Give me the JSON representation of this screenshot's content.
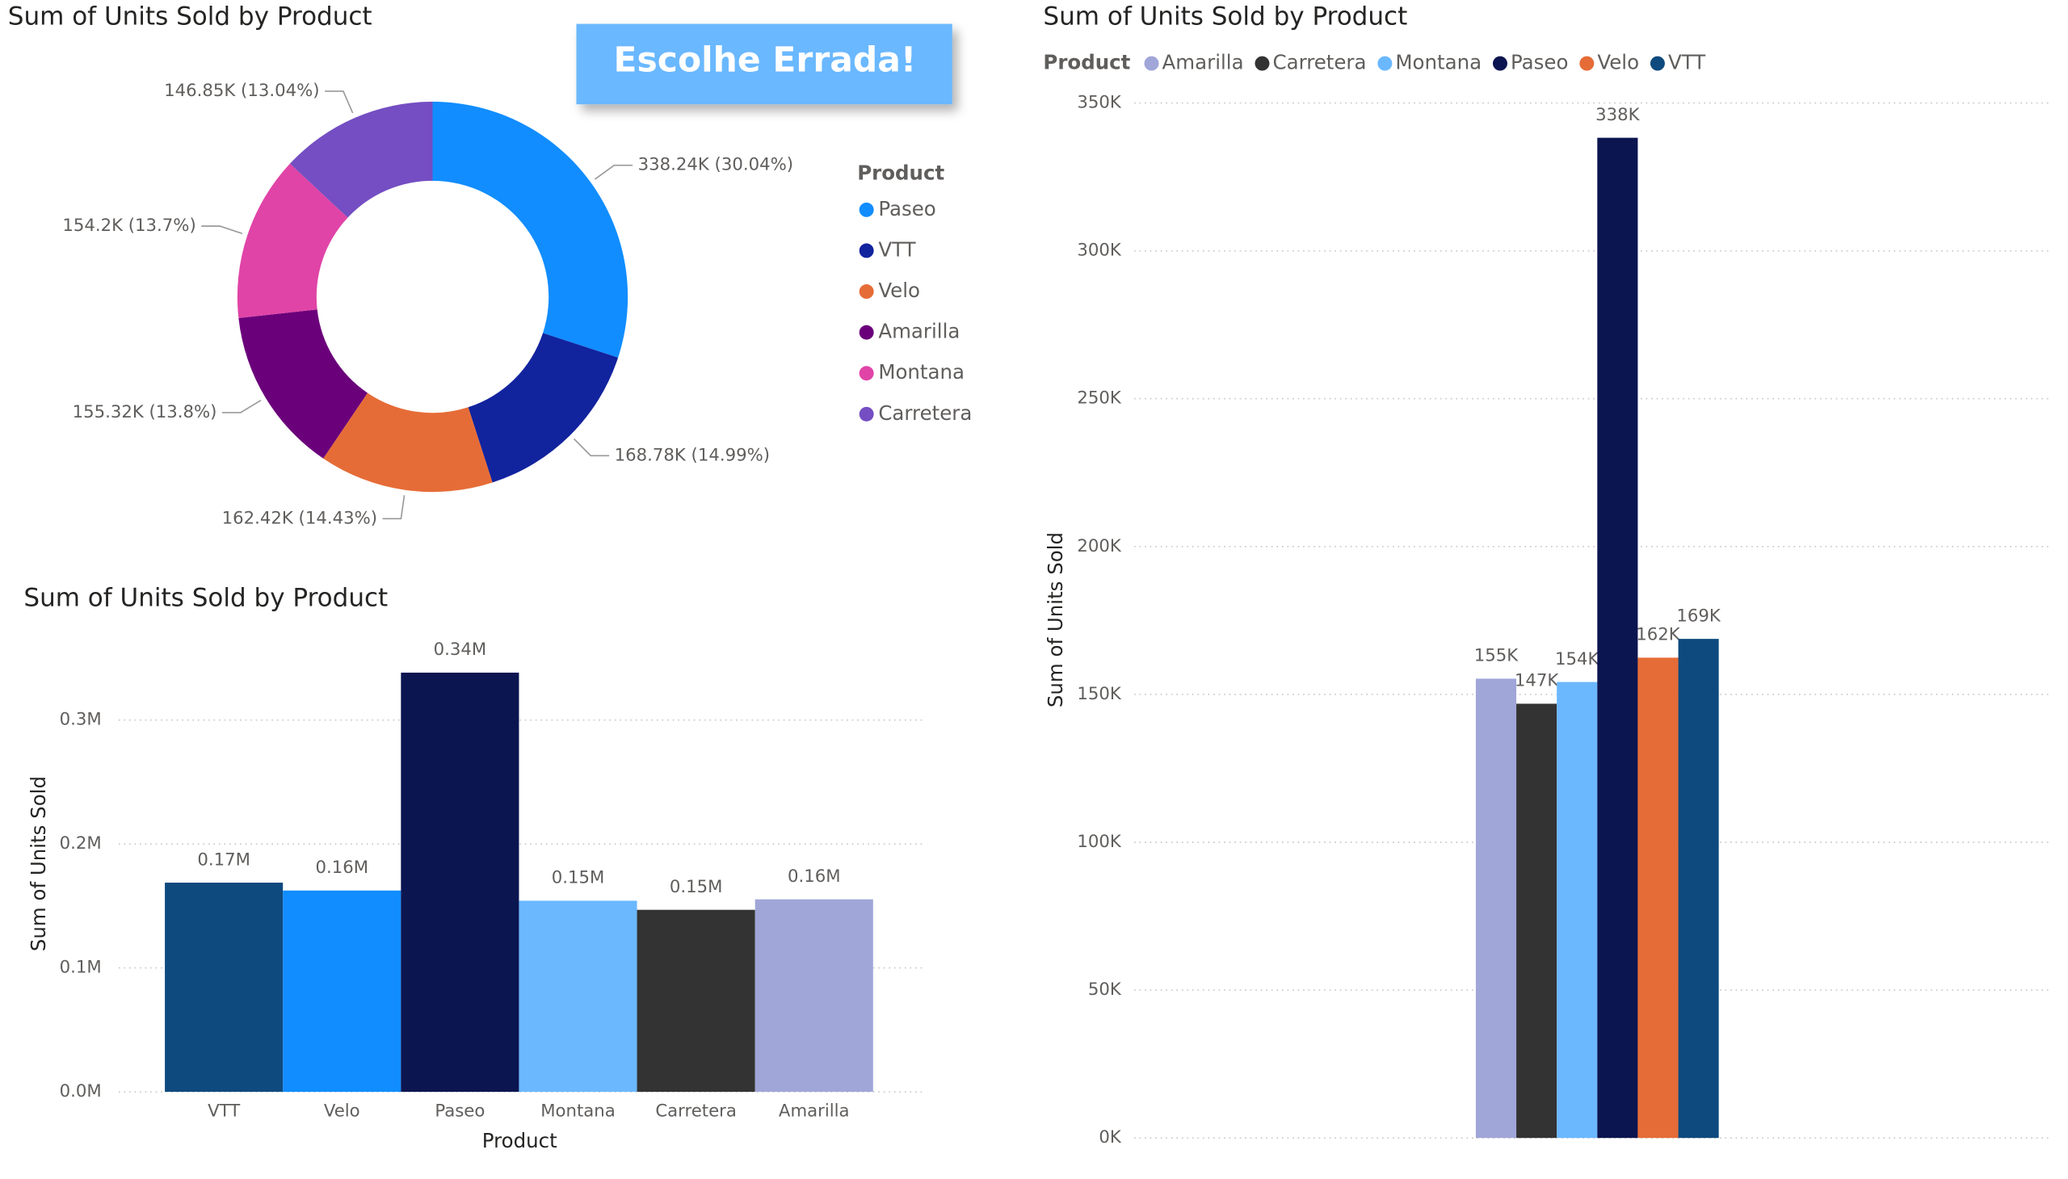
{
  "banner": {
    "text": "Escolhe Errada!"
  },
  "chart_data": [
    {
      "type": "donut",
      "title": "Sum of Units Sold by Product",
      "legend_title": "Product",
      "categories": [
        "Paseo",
        "VTT",
        "Velo",
        "Amarilla",
        "Montana",
        "Carretera"
      ],
      "values": [
        338.24,
        168.78,
        162.42,
        155.32,
        154.2,
        146.85
      ],
      "value_labels": [
        "338.24K (30.04%)",
        "168.78K (14.99%)",
        "162.42K (14.43%)",
        "155.32K (13.8%)",
        "154.2K (13.7%)",
        "146.85K (13.04%)"
      ],
      "colors": [
        "#118dff",
        "#12239e",
        "#e66c37",
        "#6b007b",
        "#e044a7",
        "#744ec2"
      ]
    },
    {
      "type": "bar",
      "title": "Sum of Units Sold by Product",
      "x_label": "Product",
      "y_label": "Sum of Units Sold",
      "categories": [
        "VTT",
        "Velo",
        "Paseo",
        "Montana",
        "Carretera",
        "Amarilla"
      ],
      "values": [
        0.16878,
        0.16242,
        0.33824,
        0.1542,
        0.14685,
        0.15532
      ],
      "value_labels": [
        "0.17M",
        "0.16M",
        "0.34M",
        "0.15M",
        "0.15M",
        "0.16M"
      ],
      "colors": [
        "#0e4a7e",
        "#118dff",
        "#0b1550",
        "#6bb8ff",
        "#333333",
        "#a0a6d8"
      ],
      "ylim": [
        0,
        0.35
      ],
      "yticks": [
        {
          "value": 0,
          "label": "0.0M"
        },
        {
          "value": 0.1,
          "label": "0.1M"
        },
        {
          "value": 0.2,
          "label": "0.2M"
        },
        {
          "value": 0.3,
          "label": "0.3M"
        }
      ],
      "grid": true
    },
    {
      "type": "grouped_bar",
      "title": "Sum of Units Sold by Product",
      "y_label": "Sum of Units Sold",
      "legend_title": "Product",
      "categories": [
        null
      ],
      "series": [
        {
          "name": "Amarilla",
          "color": "#a0a6d8",
          "values": [
            155.32
          ],
          "value_labels": [
            "155K"
          ]
        },
        {
          "name": "Carretera",
          "color": "#333333",
          "values": [
            146.85
          ],
          "value_labels": [
            "147K"
          ]
        },
        {
          "name": "Montana",
          "color": "#6bb8ff",
          "values": [
            154.2
          ],
          "value_labels": [
            "154K"
          ]
        },
        {
          "name": "Paseo",
          "color": "#0b1550",
          "values": [
            338.24
          ],
          "value_labels": [
            "338K"
          ]
        },
        {
          "name": "Velo",
          "color": "#e66c37",
          "values": [
            162.42
          ],
          "value_labels": [
            "162K"
          ]
        },
        {
          "name": "VTT",
          "color": "#0e4a7e",
          "values": [
            168.78
          ],
          "value_labels": [
            "169K"
          ]
        }
      ],
      "ylim": [
        0,
        350
      ],
      "yticks": [
        {
          "value": 0,
          "label": "0K"
        },
        {
          "value": 50,
          "label": "50K"
        },
        {
          "value": 100,
          "label": "100K"
        },
        {
          "value": 150,
          "label": "150K"
        },
        {
          "value": 200,
          "label": "200K"
        },
        {
          "value": 250,
          "label": "250K"
        },
        {
          "value": 300,
          "label": "300K"
        },
        {
          "value": 350,
          "label": "350K"
        }
      ],
      "grid": true
    }
  ]
}
